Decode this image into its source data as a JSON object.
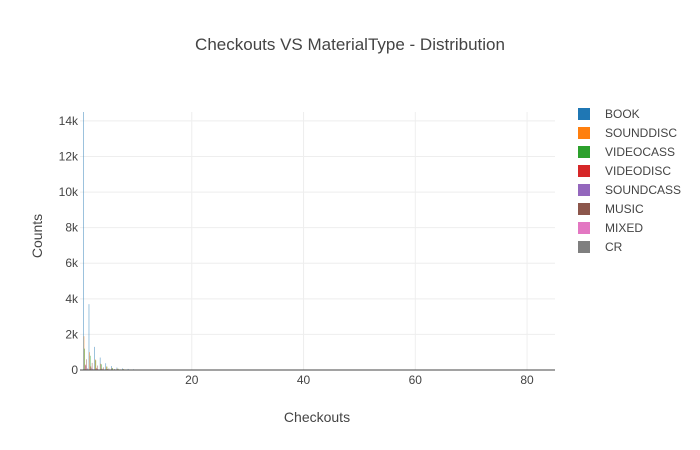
{
  "chart_data": {
    "type": "bar",
    "title": "Checkouts VS MaterialType - Distribution",
    "xlabel": "Checkouts",
    "ylabel": "Counts",
    "xlim": [
      0,
      85
    ],
    "ylim": [
      0,
      14500
    ],
    "x_ticks": [
      20,
      40,
      60,
      80
    ],
    "x_tick_labels": [
      "20",
      "40",
      "60",
      "80"
    ],
    "y_ticks": [
      0,
      2000,
      4000,
      6000,
      8000,
      10000,
      12000,
      14000
    ],
    "y_tick_labels": [
      "0",
      "2k",
      "4k",
      "6k",
      "8k",
      "10k",
      "12k",
      "14k"
    ],
    "grid": true,
    "legend_position": "right",
    "x": [
      1,
      2,
      3,
      4,
      5,
      6,
      7,
      8,
      9,
      10,
      11,
      12
    ],
    "series": [
      {
        "name": "BOOK",
        "color": "#1f77b4",
        "values": [
          14500,
          3700,
          1300,
          700,
          380,
          220,
          140,
          90,
          60,
          40,
          25,
          15
        ]
      },
      {
        "name": "SOUNDDISC",
        "color": "#ff7f0e",
        "values": [
          1900,
          1000,
          600,
          350,
          200,
          120,
          80,
          50,
          30,
          20,
          12,
          8
        ]
      },
      {
        "name": "VIDEOCASS",
        "color": "#2ca02c",
        "values": [
          1200,
          800,
          550,
          320,
          190,
          110,
          70,
          45,
          28,
          18,
          10,
          6
        ]
      },
      {
        "name": "VIDEODISC",
        "color": "#d62728",
        "values": [
          300,
          200,
          120,
          80,
          50,
          30,
          20,
          12,
          8,
          5,
          3,
          2
        ]
      },
      {
        "name": "SOUNDCASS",
        "color": "#9467bd",
        "values": [
          250,
          120,
          70,
          40,
          25,
          15,
          10,
          6,
          4,
          2,
          1,
          1
        ]
      },
      {
        "name": "MUSIC",
        "color": "#8c564b",
        "values": [
          600,
          400,
          250,
          150,
          90,
          55,
          35,
          22,
          14,
          9,
          5,
          3
        ]
      },
      {
        "name": "MIXED",
        "color": "#e377c2",
        "values": [
          100,
          60,
          35,
          20,
          12,
          8,
          5,
          3,
          2,
          1,
          1,
          0
        ]
      },
      {
        "name": "CR",
        "color": "#7f7f7f",
        "values": [
          80,
          40,
          20,
          12,
          8,
          5,
          3,
          2,
          1,
          1,
          0,
          0
        ]
      }
    ]
  }
}
